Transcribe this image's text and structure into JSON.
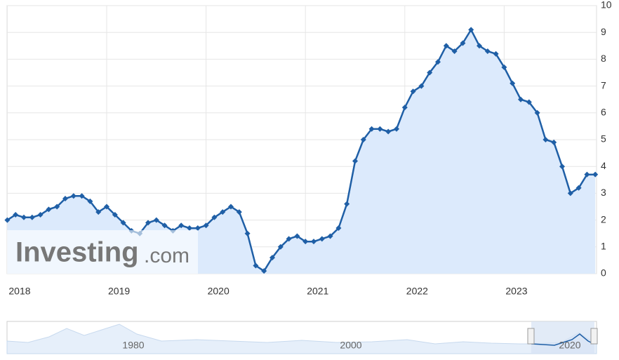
{
  "chart_data": {
    "type": "line",
    "categories": [
      "2018",
      null,
      null,
      null,
      null,
      null,
      null,
      null,
      null,
      null,
      null,
      null,
      "2019",
      null,
      null,
      null,
      null,
      null,
      null,
      null,
      null,
      null,
      null,
      null,
      "2020",
      null,
      null,
      null,
      null,
      null,
      null,
      null,
      null,
      null,
      null,
      null,
      "2021",
      null,
      null,
      null,
      null,
      null,
      null,
      null,
      null,
      null,
      null,
      null,
      "2022",
      null,
      null,
      null,
      null,
      null,
      null,
      null,
      null,
      null,
      null,
      null,
      "2023",
      null,
      null,
      null,
      null,
      null,
      null,
      null,
      null,
      null,
      null,
      null
    ],
    "series": [
      {
        "color": "#1f5fa6",
        "values": [
          2.0,
          2.2,
          2.1,
          2.1,
          2.2,
          2.4,
          2.5,
          2.8,
          2.9,
          2.9,
          2.7,
          2.3,
          2.5,
          2.2,
          1.9,
          1.6,
          1.5,
          1.9,
          2.0,
          1.8,
          1.6,
          1.8,
          1.7,
          1.7,
          1.8,
          2.1,
          2.3,
          2.5,
          2.3,
          1.5,
          0.3,
          0.1,
          0.6,
          1.0,
          1.3,
          1.4,
          1.2,
          1.2,
          1.3,
          1.4,
          1.7,
          2.6,
          4.2,
          5.0,
          5.4,
          5.4,
          5.3,
          5.4,
          6.2,
          6.8,
          7.0,
          7.5,
          7.9,
          8.5,
          8.3,
          8.6,
          9.1,
          8.5,
          8.3,
          8.2,
          7.7,
          7.1,
          6.5,
          6.4,
          6.0,
          5.0,
          4.9,
          4.0,
          3.0,
          3.2,
          3.7,
          3.7
        ]
      }
    ],
    "area_color": "#dceafc",
    "ylim": [
      0,
      10
    ],
    "yticks": [
      0,
      1,
      2,
      3,
      4,
      5,
      6,
      7,
      8,
      9,
      10
    ],
    "grid": true,
    "watermark": {
      "brand": "Investing",
      "suffix": ".com"
    },
    "navigator_labels": [
      "1980",
      "2000",
      "2020"
    ]
  }
}
